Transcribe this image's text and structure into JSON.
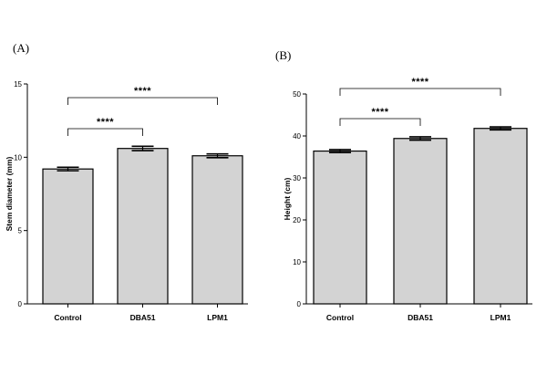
{
  "chart_data": [
    {
      "panel": "(A)",
      "type": "bar",
      "categories": [
        "Control",
        "DBA51",
        "LPM1"
      ],
      "values": [
        9.2,
        10.6,
        10.1
      ],
      "errors": [
        0.12,
        0.15,
        0.13
      ],
      "ylabel": "Stem diameter (mm)",
      "ylim": [
        0,
        15
      ],
      "yticks": [
        "0",
        "5",
        "10",
        "15"
      ],
      "bar_color": "#d3d3d3",
      "significance": [
        {
          "from": 0,
          "to": 1,
          "label": "****"
        },
        {
          "from": 0,
          "to": 2,
          "label": "****"
        }
      ]
    },
    {
      "panel": "(B)",
      "type": "bar",
      "categories": [
        "Control",
        "DBA51",
        "LPM1"
      ],
      "values": [
        36.4,
        39.4,
        41.8
      ],
      "errors": [
        0.35,
        0.4,
        0.35
      ],
      "ylabel": "Height (cm)",
      "ylim": [
        0,
        50
      ],
      "yticks": [
        "0",
        "10",
        "20",
        "30",
        "40",
        "50"
      ],
      "bar_color": "#d3d3d3",
      "significance": [
        {
          "from": 0,
          "to": 1,
          "label": "****"
        },
        {
          "from": 0,
          "to": 2,
          "label": "****"
        }
      ]
    }
  ]
}
